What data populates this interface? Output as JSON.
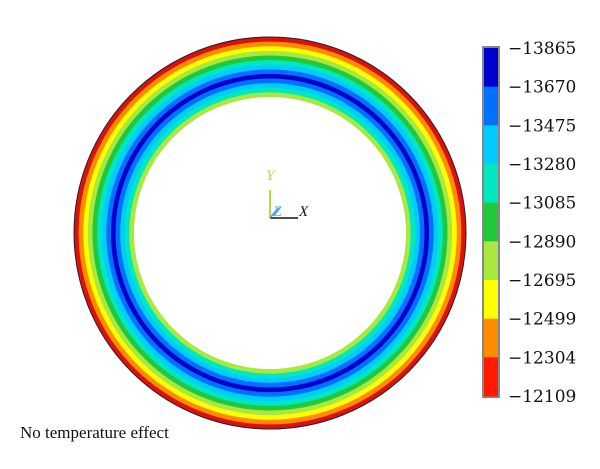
{
  "figure": {
    "caption": "No temperature effect"
  },
  "axes_triad": {
    "y_label": "Y",
    "x_label": "X",
    "z_label": "Z",
    "y_color": "#b7d93a",
    "x_color": "#111111",
    "z_color": "#3aa0ff"
  },
  "colorbar": {
    "labels": [
      "−13865",
      "−13670",
      "−13475",
      "−13280",
      "−13085",
      "−12890",
      "−12695",
      "−12499",
      "−12304",
      "−12109"
    ],
    "bands": [
      "#0000cd",
      "#0070ff",
      "#00ccff",
      "#00e8c0",
      "#22c83a",
      "#a8e840",
      "#ffff00",
      "#ff8c00",
      "#ff1a00"
    ],
    "frame_color": "#888888"
  },
  "ring": {
    "colors": [
      "#dd1010",
      "#ff8c00",
      "#ffff00",
      "#a8e840",
      "#22c83a",
      "#00e8c0",
      "#00ccff",
      "#0070ff",
      "#0000cd",
      "#0070ff",
      "#00ccff",
      "#00e8c0",
      "#a8e840"
    ]
  }
}
